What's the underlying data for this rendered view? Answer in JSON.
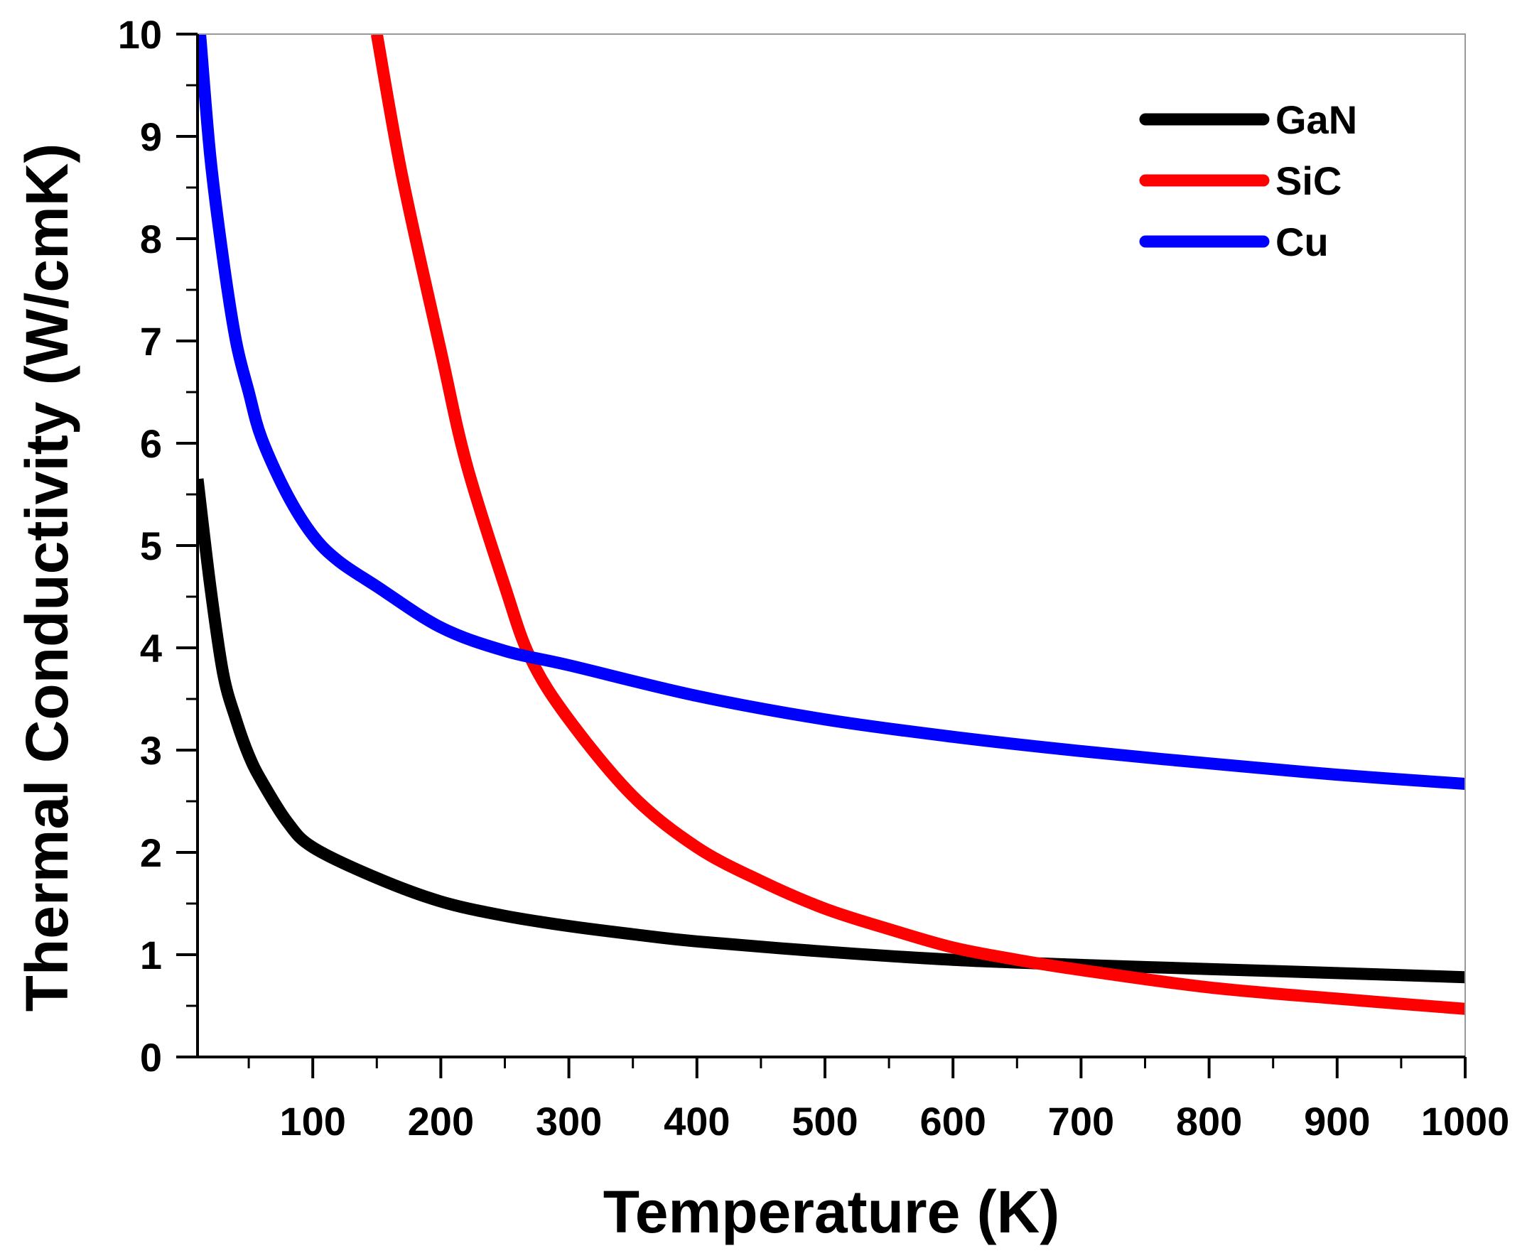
{
  "chart_data": {
    "type": "line",
    "title": "",
    "xlabel": "Temperature (K)",
    "ylabel": "Thermal Conductivity (W/cmK)",
    "xlim": [
      10,
      1000
    ],
    "ylim": [
      0,
      10
    ],
    "grid": false,
    "legend_position": "top-right",
    "x_ticks": [
      100,
      200,
      300,
      400,
      500,
      600,
      700,
      800,
      900,
      1000
    ],
    "x_tick_labels": [
      "100",
      "200",
      "300",
      "400",
      "500",
      "600",
      "700",
      "800",
      "900",
      "1000"
    ],
    "y_ticks": [
      0,
      1,
      2,
      3,
      4,
      5,
      6,
      7,
      8,
      9,
      10
    ],
    "y_tick_labels": [
      "0",
      "1",
      "2",
      "3",
      "4",
      "5",
      "6",
      "7",
      "8",
      "9",
      "10"
    ],
    "series": [
      {
        "name": "GaN",
        "color": "#000000",
        "x": [
          10,
          20,
          30,
          40,
          50,
          60,
          80,
          100,
          150,
          200,
          250,
          300,
          350,
          400,
          500,
          600,
          700,
          800,
          900,
          1000
        ],
        "y": [
          5.65,
          4.6,
          3.75,
          3.3,
          2.95,
          2.7,
          2.3,
          2.05,
          1.75,
          1.52,
          1.38,
          1.28,
          1.2,
          1.13,
          1.03,
          0.95,
          0.9,
          0.86,
          0.82,
          0.78
        ]
      },
      {
        "name": "SiC",
        "color": "#ff0000",
        "x": [
          150,
          170,
          200,
          220,
          250,
          270,
          300,
          350,
          400,
          450,
          500,
          550,
          600,
          650,
          700,
          800,
          900,
          1000
        ],
        "y": [
          10,
          8.6,
          6.9,
          5.8,
          4.6,
          3.9,
          3.3,
          2.55,
          2.05,
          1.72,
          1.45,
          1.25,
          1.07,
          0.95,
          0.85,
          0.68,
          0.57,
          0.47
        ]
      },
      {
        "name": "Cu",
        "color": "#0000ff",
        "x": [
          12,
          20,
          30,
          40,
          50,
          60,
          80,
          100,
          120,
          150,
          200,
          250,
          300,
          400,
          500,
          600,
          700,
          800,
          900,
          1000
        ],
        "y": [
          10,
          8.8,
          7.8,
          7.0,
          6.5,
          6.05,
          5.5,
          5.1,
          4.85,
          4.6,
          4.2,
          3.97,
          3.83,
          3.53,
          3.3,
          3.13,
          2.99,
          2.87,
          2.76,
          2.67
        ]
      }
    ]
  }
}
